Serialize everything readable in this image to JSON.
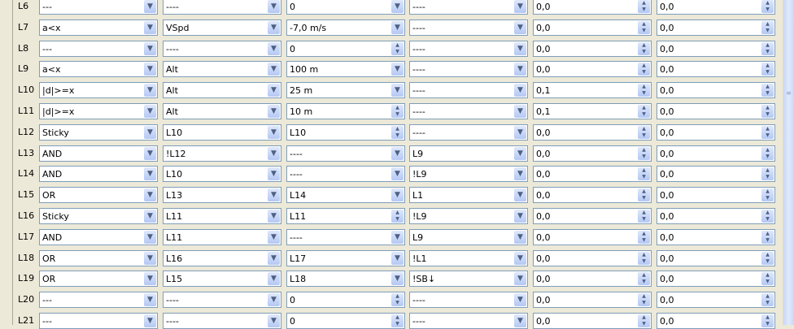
{
  "rows": [
    {
      "label": "L6",
      "func": "---",
      "v1": "----",
      "v2": "0",
      "v3": "----",
      "delay": "0,0",
      "duration": "0,0"
    },
    {
      "label": "L7",
      "func": "a<x",
      "v1": "VSpd",
      "v2": "-7,0 m/s",
      "v3": "----",
      "delay": "0,0",
      "duration": "0,0"
    },
    {
      "label": "L8",
      "func": "---",
      "v1": "----",
      "v2": "0",
      "v3": "----",
      "delay": "0,0",
      "duration": "0,0"
    },
    {
      "label": "L9",
      "func": "a<x",
      "v1": "Alt",
      "v2": "100 m",
      "v3": "----",
      "delay": "0,0",
      "duration": "0,0"
    },
    {
      "label": "L10",
      "func": "|d|>=x",
      "v1": "Alt",
      "v2": "25 m",
      "v3": "----",
      "delay": "0,1",
      "duration": "0,0"
    },
    {
      "label": "L11",
      "func": "|d|>=x",
      "v1": "Alt",
      "v2": "10 m",
      "v3": "----",
      "delay": "0,1",
      "duration": "0,0"
    },
    {
      "label": "L12",
      "func": "Sticky",
      "v1": "L10",
      "v2": "L10",
      "v3": "----",
      "delay": "0,0",
      "duration": "0,0"
    },
    {
      "label": "L13",
      "func": "AND",
      "v1": "!L12",
      "v2": "----",
      "v3": "L9",
      "delay": "0,0",
      "duration": "0,0"
    },
    {
      "label": "L14",
      "func": "AND",
      "v1": "L10",
      "v2": "----",
      "v3": "!L9",
      "delay": "0,0",
      "duration": "0,0"
    },
    {
      "label": "L15",
      "func": "OR",
      "v1": "L13",
      "v2": "L14",
      "v3": "L1",
      "delay": "0,0",
      "duration": "0,0"
    },
    {
      "label": "L16",
      "func": "Sticky",
      "v1": "L11",
      "v2": "L11",
      "v3": "!L9",
      "delay": "0,0",
      "duration": "0,0"
    },
    {
      "label": "L17",
      "func": "AND",
      "v1": "L11",
      "v2": "----",
      "v3": "L9",
      "delay": "0,0",
      "duration": "0,0"
    },
    {
      "label": "L18",
      "func": "OR",
      "v1": "L16",
      "v2": "L17",
      "v3": "!L1",
      "delay": "0,0",
      "duration": "0,0"
    },
    {
      "label": "L19",
      "func": "OR",
      "v1": "L15",
      "v2": "L18",
      "v3": "!SB↓",
      "delay": "0,0",
      "duration": "0,0"
    },
    {
      "label": "L20",
      "func": "---",
      "v1": "----",
      "v2": "0",
      "v3": "----",
      "delay": "0,0",
      "duration": "0,0"
    },
    {
      "label": "L21",
      "func": "---",
      "v1": "----",
      "v2": "0",
      "v3": "----",
      "delay": "0,0",
      "duration": "0,0"
    }
  ],
  "v2_is_spinner": [
    false,
    false,
    true,
    false,
    false,
    true,
    true,
    false,
    false,
    false,
    true,
    false,
    false,
    false,
    true,
    true
  ]
}
